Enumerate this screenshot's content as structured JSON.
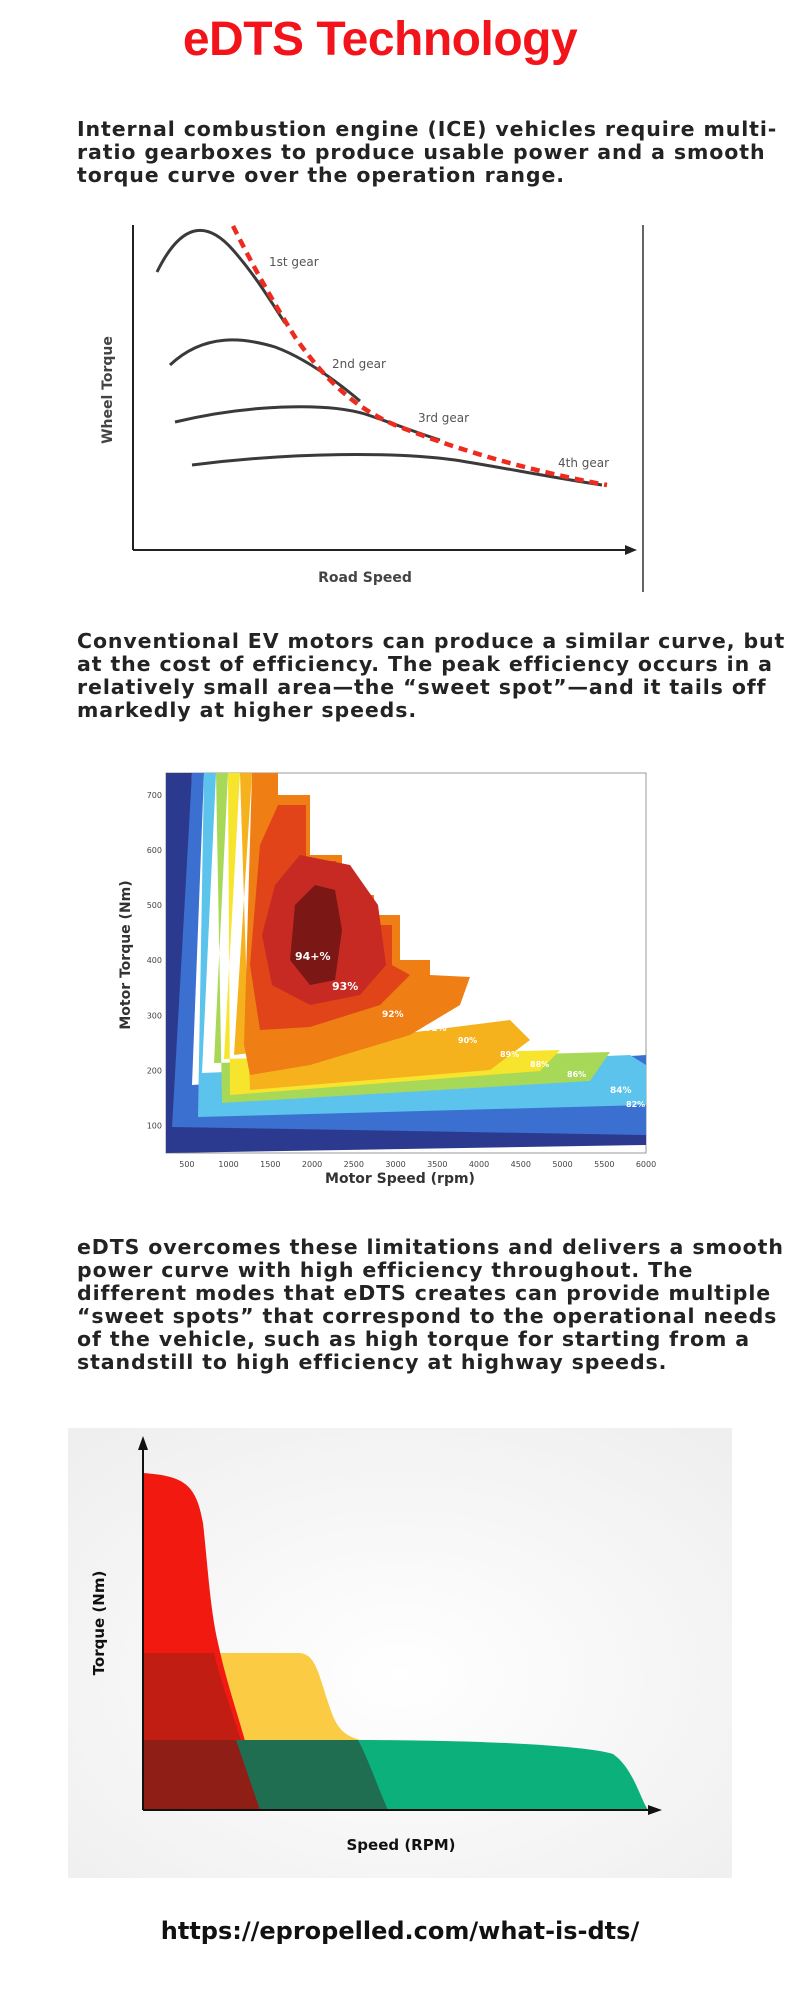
{
  "title": "eDTS Technology",
  "paragraphs": [
    "Internal combustion engine (ICE) vehicles require multi-ratio gearboxes to produce usable power and a smooth torque curve over the operation range.",
    "Conventional EV motors can produce a similar curve, but at the cost of efficiency. The peak efficiency occurs in a relatively small area—the “sweet spot”—and it tails off markedly at higher speeds.",
    "eDTS overcomes these limitations and delivers a smooth power curve with high efficiency throughout. The different modes that eDTS creates can provide multiple “sweet spots” that correspond to the operational needs of the vehicle, such as high torque for starting from a standstill to high efficiency at highway speeds."
  ],
  "figure1": {
    "ylabel": "Wheel Torque",
    "xlabel": "Road Speed",
    "curves": [
      "1st gear",
      "2nd gear",
      "3rd gear",
      "4th gear"
    ],
    "envelope_color": "#ee2b1f"
  },
  "figure2": {
    "ylabel": "Motor Torque (Nm)",
    "xlabel": "Motor Speed (rpm)",
    "x_ticks": [
      "500",
      "1000",
      "1500",
      "2000",
      "2500",
      "3000",
      "3500",
      "4000",
      "4500",
      "5000",
      "5500",
      "6000"
    ],
    "y_ticks": [
      "100",
      "200",
      "300",
      "400",
      "500",
      "600",
      "700"
    ],
    "contour_labels": [
      "94+%",
      "93%",
      "92%",
      "91%",
      "90%",
      "89%",
      "88%",
      "86%",
      "84%",
      "82%"
    ],
    "colors": [
      "#2b3a8e",
      "#3b6fd0",
      "#5bc3ec",
      "#a8d858",
      "#f7e42c",
      "#f6b21c",
      "#ef7e14",
      "#e2441a",
      "#c62a22",
      "#7b1714"
    ]
  },
  "figure3": {
    "ylabel": "Torque (Nm)",
    "xlabel": "Speed (RPM)",
    "colors": [
      "#f21a10",
      "#fccb44",
      "#0bb07a",
      "#a82115",
      "#1f6e52"
    ]
  },
  "url": "https://epropelled.com/what-is-dts/"
}
